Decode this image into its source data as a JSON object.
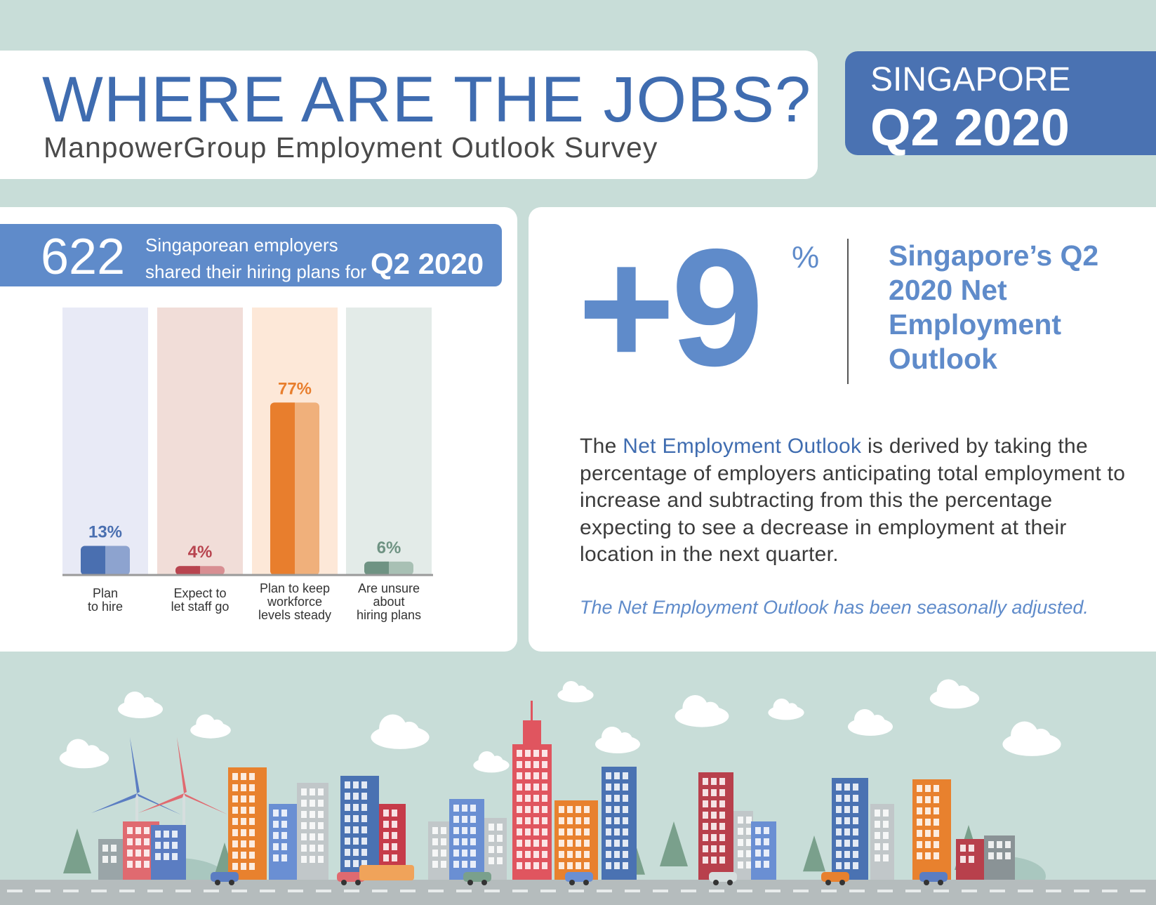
{
  "header": {
    "title": "WHERE ARE THE JOBS?",
    "subtitle": "ManpowerGroup Employment Outlook Survey"
  },
  "region": {
    "name": "SINGAPORE",
    "quarter": "Q2 2020"
  },
  "banner": {
    "count": "622",
    "line1": "Singaporean employers",
    "line2": "shared their hiring plans for",
    "quarter": "Q2 2020"
  },
  "chart_data": {
    "type": "bar",
    "categories": [
      [
        "Plan",
        "to hire"
      ],
      [
        "Expect to",
        "let staff go"
      ],
      [
        "Plan to keep",
        "workforce",
        "levels steady"
      ],
      [
        "Are unsure",
        "about",
        "hiring plans"
      ]
    ],
    "values": [
      13,
      4,
      77,
      6
    ],
    "value_labels": [
      "13%",
      "4%",
      "77%",
      "6%"
    ],
    "ylim": [
      0,
      100
    ],
    "colors": {
      "bar": [
        "#4a6fb0",
        "#b8444f",
        "#e87e2d",
        "#6f9383"
      ],
      "bar_light": [
        "#8da3cf",
        "#d88e92",
        "#f0b07b",
        "#a8c0b4"
      ],
      "bg": [
        "#e8eaf6",
        "#f1ddd8",
        "#fde8d8",
        "#e3ebe8"
      ],
      "label": [
        "#4a6fb0",
        "#b8444f",
        "#e87e2d",
        "#6f9383"
      ]
    }
  },
  "outlook": {
    "value": "+9",
    "unit": "%",
    "label": "Singapore’s Q2 2020 Net Employment Outlook"
  },
  "description": {
    "before": "The ",
    "highlight": "Net Employment Outlook",
    "after": " is derived by taking the percentage of employers anticipating total employment to increase and subtracting from this the percentage expecting to see a decrease in employment at their location in the next quarter."
  },
  "note": "The Net Employment Outlook has been seasonally adjusted.",
  "colors": {
    "background": "#c8ddd8",
    "brand_blue": "#4a72b2",
    "accent_blue": "#5f8bca"
  }
}
